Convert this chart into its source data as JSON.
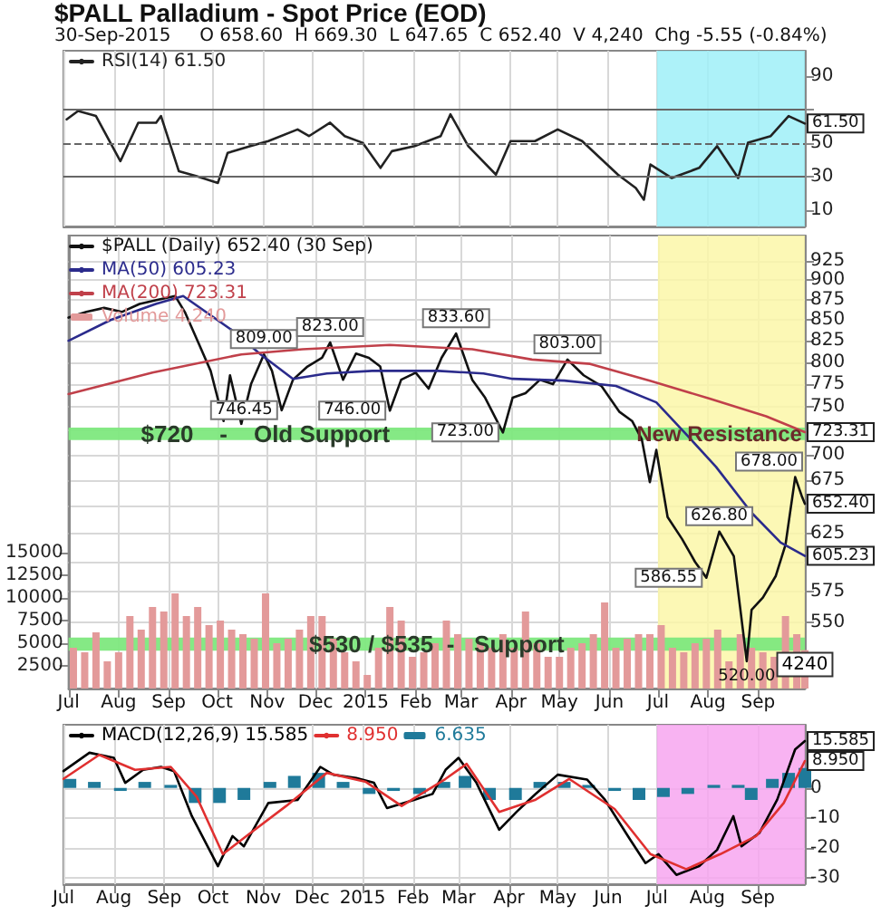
{
  "chart_data": [
    {
      "type": "line",
      "title": "$PALL Palladium - Spot Price (EOD)",
      "subtitle": "30-Sep-2015     O 658.60  H 669.30  L 647.65  C 652.40  V 4,240  Chg -5.55 (-0.84%)",
      "xlim": [
        "2014-07-01",
        "2015-09-30"
      ],
      "xticks": [
        "2014-07-01",
        "2014-08-01",
        "2014-09-01",
        "2014-10-01",
        "2014-11-01",
        "2014-12-01",
        "2015-01-01",
        "2015-02-01",
        "2015-03-01",
        "2015-04-01",
        "2015-05-01",
        "2015-06-01",
        "2015-07-01",
        "2015-08-01",
        "2015-09-01"
      ],
      "ylim": [
        0,
        105
      ],
      "yticks": [
        10,
        30,
        50,
        {
          "value": 70,
          "label": null
        },
        90
      ],
      "tick_labels": "y",
      "grid": "x",
      "legend": "top left",
      "marker": "none",
      "line_style": "solid",
      "x": [
        "2014-07-03",
        "2014-07-10",
        "2014-07-21",
        "2014-08-05",
        "2014-08-16",
        "2014-08-27",
        "2014-08-30",
        "2014-09-10",
        "2014-09-21",
        "2014-10-04",
        "2014-10-10",
        "2014-10-24",
        "2014-11-04",
        "2014-11-22",
        "2014-11-29",
        "2014-12-12",
        "2014-12-21",
        "2015-01-01",
        "2015-01-12",
        "2015-01-19",
        "2015-02-02",
        "2015-02-18",
        "2015-02-24",
        "2015-03-07",
        "2015-03-24",
        "2015-04-02",
        "2015-04-17",
        "2015-05-01",
        "2015-05-16",
        "2015-05-27",
        "2015-06-07",
        "2015-06-18",
        "2015-06-23",
        "2015-06-27",
        "2015-07-10",
        "2015-07-27",
        "2015-08-07",
        "2015-08-20",
        "2015-08-26",
        "2015-09-09",
        "2015-09-20",
        "2015-09-30"
      ],
      "series": [
        {
          "name": "RSI(14) 61.50",
          "color": "#222222",
          "values": [
            64,
            69,
            66,
            39,
            62,
            62,
            66,
            33,
            30,
            26,
            44,
            48,
            51,
            58,
            54,
            62,
            54,
            50,
            35,
            45,
            48,
            54,
            67,
            48,
            31,
            51,
            51,
            58,
            51,
            41,
            31,
            23,
            16,
            37,
            29,
            35,
            48,
            29,
            50,
            54,
            66,
            61.5
          ]
        }
      ],
      "ref_lines": [
        {
          "axis": "y",
          "value": 70,
          "color": "#666666",
          "line_style": "solid"
        },
        {
          "axis": "y",
          "value": 50,
          "color": "#666666",
          "line_style": "dashed"
        },
        {
          "axis": "y",
          "value": 30,
          "color": "#666666",
          "line_style": "solid"
        }
      ],
      "bands": [
        {
          "axis": "x",
          "from": "2015-07-01",
          "to": "2015-09-30",
          "color": "#9ff0f8"
        }
      ],
      "annotations": [
        {
          "text": "61.50",
          "x": "2015-09-30",
          "y": 61.5
        }
      ]
    },
    {
      "type": "line",
      "log": true,
      "xlim": [
        "2014-07-01",
        "2015-09-30"
      ],
      "xticks": [
        {
          "value": "2014-07-01",
          "label": "Jul"
        },
        {
          "value": "2014-08-01",
          "label": "Aug"
        },
        {
          "value": "2014-09-01",
          "label": "Sep"
        },
        {
          "value": "2014-10-01",
          "label": "Oct"
        },
        {
          "value": "2014-11-01",
          "label": "Nov"
        },
        {
          "value": "2014-12-01",
          "label": "Dec"
        },
        {
          "value": "2015-01-01",
          "label": "2015"
        },
        {
          "value": "2015-02-01",
          "label": "Feb"
        },
        {
          "value": "2015-03-01",
          "label": "Mar"
        },
        {
          "value": "2015-04-01",
          "label": "Apr"
        },
        {
          "value": "2015-05-01",
          "label": "May"
        },
        {
          "value": "2015-06-01",
          "label": "Jun"
        },
        {
          "value": "2015-07-01",
          "label": "Jul"
        },
        {
          "value": "2015-08-01",
          "label": "Aug"
        },
        {
          "value": "2015-09-01",
          "label": "Sep"
        }
      ],
      "ylim": [
        500,
        960
      ],
      "yticks": [
        550,
        575,
        {
          "value": 600,
          "label": null
        },
        625,
        {
          "value": 650,
          "label": null
        },
        675,
        700,
        {
          "value": 725,
          "label": null
        },
        750,
        775,
        800,
        825,
        850,
        875,
        900,
        925
      ],
      "y2lim": [
        0,
        50000
      ],
      "y2ticks": [
        2500,
        5000,
        7500,
        10000,
        12500,
        15000
      ],
      "grid": true,
      "legend": "top left",
      "marker": "none",
      "line_style": "solid",
      "series": [
        {
          "name": "$PALL (Daily) 652.40 (30 Sep)",
          "color": "#111111",
          "x": [
            "2014-07-01",
            "2014-07-12",
            "2014-07-23",
            "2014-08-03",
            "2014-08-14",
            "2014-08-25",
            "2014-09-05",
            "2014-09-11",
            "2014-09-20",
            "2014-09-27",
            "2014-10-05",
            "2014-10-09",
            "2014-10-16",
            "2014-10-22",
            "2014-10-30",
            "2014-11-04",
            "2014-11-10",
            "2014-11-17",
            "2014-11-26",
            "2014-12-05",
            "2014-12-10",
            "2014-12-18",
            "2014-12-26",
            "2015-01-03",
            "2015-01-10",
            "2015-01-16",
            "2015-01-23",
            "2015-02-01",
            "2015-02-09",
            "2015-02-17",
            "2015-02-26",
            "2015-03-08",
            "2015-03-16",
            "2015-03-27",
            "2015-04-02",
            "2015-04-10",
            "2015-04-19",
            "2015-04-27",
            "2015-05-06",
            "2015-05-16",
            "2015-05-27",
            "2015-06-07",
            "2015-06-15",
            "2015-06-21",
            "2015-06-26",
            "2015-06-30",
            "2015-07-07",
            "2015-07-16",
            "2015-07-24",
            "2015-07-31",
            "2015-08-08",
            "2015-08-17",
            "2015-08-25",
            "2015-08-28",
            "2015-09-04",
            "2015-09-12",
            "2015-09-18",
            "2015-09-24",
            "2015-09-28",
            "2015-09-30"
          ],
          "values": [
            853,
            860,
            865,
            860,
            870,
            875,
            880,
            860,
            820,
            790,
            735,
            785,
            732,
            775,
            809,
            790,
            746.45,
            780,
            795,
            805,
            823,
            780,
            810,
            805,
            795,
            746,
            780,
            788,
            770,
            805,
            833.6,
            780,
            760,
            723,
            760,
            765,
            780,
            775,
            803,
            785,
            773,
            745,
            735,
            716,
            673,
            705,
            640,
            620,
            600,
            586.55,
            626.8,
            605,
            520,
            560,
            570,
            588,
            615,
            678,
            660,
            652.4
          ]
        },
        {
          "name": "MA(50) 605.23",
          "color": "#2b2b8c",
          "x": [
            "2014-07-01",
            "2014-07-27",
            "2014-08-24",
            "2014-09-10",
            "2014-10-10",
            "2014-10-28",
            "2014-11-17",
            "2014-12-08",
            "2015-01-05",
            "2015-02-15",
            "2015-03-15",
            "2015-04-02",
            "2015-05-04",
            "2015-06-05",
            "2015-06-30",
            "2015-07-18",
            "2015-08-06",
            "2015-08-28",
            "2015-09-15",
            "2015-09-30"
          ],
          "values": [
            825,
            850,
            870,
            880,
            838,
            809,
            781,
            787,
            790,
            790,
            787,
            781,
            779,
            773,
            755,
            722,
            688,
            644,
            617,
            605.23
          ]
        },
        {
          "name": "MA(200) 723.31",
          "color": "#c0404a",
          "x": [
            "2014-07-01",
            "2014-08-22",
            "2014-10-16",
            "2014-11-23",
            "2015-01-16",
            "2015-03-08",
            "2015-04-14",
            "2015-05-20",
            "2015-06-26",
            "2015-08-02",
            "2015-09-06",
            "2015-09-30"
          ],
          "values": [
            764,
            788,
            809,
            815,
            820,
            815,
            803,
            798,
            779,
            759,
            740,
            723.31
          ]
        },
        {
          "name": "Volume 4,240",
          "type": "bar",
          "axis": "y2",
          "color": "#e39a9a",
          "x": [
            "2014-07-04",
            "2014-07-11",
            "2014-07-18",
            "2014-07-25",
            "2014-08-01",
            "2014-08-08",
            "2014-08-15",
            "2014-08-22",
            "2014-08-29",
            "2014-09-05",
            "2014-09-12",
            "2014-09-19",
            "2014-09-26",
            "2014-10-03",
            "2014-10-10",
            "2014-10-17",
            "2014-10-24",
            "2014-10-31",
            "2014-11-07",
            "2014-11-14",
            "2014-11-21",
            "2014-11-28",
            "2014-12-05",
            "2014-12-12",
            "2014-12-19",
            "2014-12-26",
            "2015-01-02",
            "2015-01-09",
            "2015-01-16",
            "2015-01-23",
            "2015-01-30",
            "2015-02-06",
            "2015-02-13",
            "2015-02-20",
            "2015-02-27",
            "2015-03-06",
            "2015-03-13",
            "2015-03-20",
            "2015-03-27",
            "2015-04-03",
            "2015-04-10",
            "2015-04-17",
            "2015-04-24",
            "2015-05-01",
            "2015-05-08",
            "2015-05-15",
            "2015-05-22",
            "2015-05-29",
            "2015-06-05",
            "2015-06-12",
            "2015-06-19",
            "2015-06-26",
            "2015-07-03",
            "2015-07-10",
            "2015-07-17",
            "2015-07-24",
            "2015-07-31",
            "2015-08-07",
            "2015-08-14",
            "2015-08-21",
            "2015-08-28",
            "2015-09-04",
            "2015-09-11",
            "2015-09-18",
            "2015-09-25",
            "2015-09-30"
          ],
          "values": [
            4500,
            4000,
            6200,
            3000,
            4000,
            8000,
            6500,
            9000,
            8500,
            10500,
            8000,
            9000,
            7000,
            7500,
            6500,
            6000,
            5500,
            10500,
            5000,
            5500,
            6500,
            8000,
            8000,
            5500,
            4000,
            3000,
            1500,
            4500,
            9000,
            7500,
            3500,
            4000,
            5000,
            7500,
            6000,
            5500,
            5000,
            4500,
            6000,
            4500,
            8500,
            5000,
            3500,
            3500,
            4500,
            5000,
            6000,
            9500,
            4500,
            5500,
            6000,
            6000,
            7000,
            4500,
            4000,
            5000,
            5500,
            6500,
            3000,
            6000,
            4500,
            4000,
            3500,
            8000,
            6000,
            4240
          ],
          "value_labels": [
            null,
            null,
            null,
            null,
            null,
            null,
            null,
            null,
            null,
            null,
            null,
            null,
            null,
            null,
            null,
            null,
            null,
            null,
            null,
            null,
            null,
            null,
            null,
            null,
            null,
            null,
            null,
            null,
            null,
            null,
            null,
            null,
            null,
            null,
            null,
            null,
            null,
            null,
            null,
            null,
            null,
            null,
            null,
            null,
            null,
            null,
            null,
            null,
            null,
            null,
            null,
            null,
            null,
            null,
            null,
            null,
            null,
            null,
            null,
            null,
            null,
            null,
            null,
            null,
            null,
            "4240"
          ]
        }
      ],
      "bands": [
        {
          "axis": "x",
          "from": "2015-07-01",
          "to": "2015-09-30",
          "color": "#fbf7a8"
        },
        {
          "axis": "y",
          "from": 715,
          "to": 728,
          "label": "$720    -    Old Support",
          "color": "#7ee87e"
        },
        {
          "axis": "y",
          "from": 528,
          "to": 538,
          "label": "$530 / $535  -   Support",
          "color": "#7ee87e"
        }
      ],
      "annotations": [
        {
          "text": "809.00",
          "x": "2014-10-30",
          "y": 809
        },
        {
          "text": "746.45",
          "x": "2014-11-10",
          "y": 746.45
        },
        {
          "text": "823.00",
          "x": "2014-12-10",
          "y": 823
        },
        {
          "text": "746.00",
          "x": "2015-01-16",
          "y": 746
        },
        {
          "text": "833.60",
          "x": "2015-02-26",
          "y": 833.6
        },
        {
          "text": "723.00",
          "x": "2015-03-27",
          "y": 723
        },
        {
          "text": "803.00",
          "x": "2015-05-06",
          "y": 803
        },
        {
          "text": "586.55",
          "x": "2015-07-31",
          "y": 586.55
        },
        {
          "text": "626.80",
          "x": "2015-08-08",
          "y": 626.8
        },
        {
          "text": "520.00",
          "x": "2015-08-25",
          "y": 520
        },
        {
          "text": "678.00",
          "x": "2015-09-24",
          "y": 678
        },
        {
          "text": "New Resistance",
          "x": "2015-08-08",
          "y": 721
        },
        {
          "text": "723.31",
          "x": "2015-09-30",
          "y": 723.31
        },
        {
          "text": "652.40",
          "x": "2015-09-30",
          "y": 652.4
        },
        {
          "text": "605.23",
          "x": "2015-09-30",
          "y": 605.23
        }
      ]
    },
    {
      "type": "line",
      "xlim": [
        "2014-07-01",
        "2015-09-30"
      ],
      "xticks": [
        {
          "value": "2014-07-01",
          "label": "Jul"
        },
        {
          "value": "2014-08-01",
          "label": "Aug"
        },
        {
          "value": "2014-09-01",
          "label": "Sep"
        },
        {
          "value": "2014-10-01",
          "label": "Oct"
        },
        {
          "value": "2014-11-01",
          "label": "Nov"
        },
        {
          "value": "2014-12-01",
          "label": "Dec"
        },
        {
          "value": "2015-01-01",
          "label": "2015"
        },
        {
          "value": "2015-02-01",
          "label": "Feb"
        },
        {
          "value": "2015-03-01",
          "label": "Mar"
        },
        {
          "value": "2015-04-01",
          "label": "Apr"
        },
        {
          "value": "2015-05-01",
          "label": "May"
        },
        {
          "value": "2015-06-01",
          "label": "Jun"
        },
        {
          "value": "2015-07-01",
          "label": "Jul"
        },
        {
          "value": "2015-08-01",
          "label": "Aug"
        },
        {
          "value": "2015-09-01",
          "label": "Sep"
        }
      ],
      "ylim": [
        -32,
        21
      ],
      "yticks": [
        -30,
        -20,
        -10,
        0
      ],
      "grid": true,
      "legend": "top left",
      "marker": "none",
      "line_style": "solid",
      "series": [
        {
          "name": "MACD(12,26,9) 15.585",
          "color": "#000000",
          "x": [
            "2014-07-01",
            "2014-07-17",
            "2014-08-01",
            "2014-08-08",
            "2014-08-19",
            "2014-08-30",
            "2014-09-07",
            "2014-09-18",
            "2014-10-04",
            "2014-10-13",
            "2014-10-20",
            "2014-11-04",
            "2014-11-22",
            "2014-12-06",
            "2014-12-14",
            "2014-12-28",
            "2015-01-08",
            "2015-01-16",
            "2015-02-02",
            "2015-02-13",
            "2015-02-21",
            "2015-03-01",
            "2015-03-12",
            "2015-03-26",
            "2015-04-06",
            "2015-04-17",
            "2015-05-01",
            "2015-05-19",
            "2015-05-30",
            "2015-06-14",
            "2015-06-24",
            "2015-07-02",
            "2015-07-13",
            "2015-07-27",
            "2015-08-07",
            "2015-08-17",
            "2015-08-22",
            "2015-09-02",
            "2015-09-13",
            "2015-09-24",
            "2015-09-30"
          ],
          "values": [
            5.6,
            11.7,
            10,
            1.7,
            6,
            7,
            5.6,
            -9.4,
            -26,
            -16,
            -19.4,
            -5,
            -4,
            7,
            4.4,
            3.3,
            1.7,
            -6.7,
            -3.9,
            -2,
            6,
            10,
            1.7,
            -13.9,
            -7.8,
            -2.2,
            4.4,
            2.8,
            -3.9,
            -16.7,
            -25,
            -22,
            -28.9,
            -26,
            -20.6,
            -9.4,
            -19.4,
            -15,
            -3.9,
            12.8,
            15.585
          ]
        },
        {
          "name": "8.950",
          "color": "#e03030",
          "x": [
            "2014-07-01",
            "2014-07-23",
            "2014-08-14",
            "2014-09-05",
            "2014-09-21",
            "2014-10-07",
            "2014-10-24",
            "2014-11-15",
            "2014-12-10",
            "2015-01-03",
            "2015-01-25",
            "2015-02-21",
            "2015-03-06",
            "2015-03-26",
            "2015-04-17",
            "2015-05-08",
            "2015-06-05",
            "2015-06-27",
            "2015-07-19",
            "2015-08-09",
            "2015-08-31",
            "2015-09-17",
            "2015-09-30"
          ],
          "values": [
            3,
            11,
            6,
            7,
            -3,
            -22,
            -15,
            -6,
            5,
            2,
            -6,
            3,
            8,
            -8,
            -4,
            3,
            -7,
            -22,
            -27,
            -22,
            -16,
            -5,
            8.95
          ]
        },
        {
          "name": "6.635",
          "type": "bar",
          "color": "#1f7a9a",
          "x": [
            "2014-07-05",
            "2014-07-20",
            "2014-08-05",
            "2014-08-20",
            "2014-09-05",
            "2014-09-20",
            "2014-10-05",
            "2014-10-20",
            "2014-11-05",
            "2014-11-20",
            "2014-12-05",
            "2014-12-20",
            "2015-01-05",
            "2015-01-20",
            "2015-02-05",
            "2015-02-20",
            "2015-03-05",
            "2015-03-20",
            "2015-04-05",
            "2015-04-20",
            "2015-05-05",
            "2015-05-20",
            "2015-06-05",
            "2015-06-20",
            "2015-07-05",
            "2015-07-20",
            "2015-08-05",
            "2015-08-20",
            "2015-08-28",
            "2015-09-10",
            "2015-09-20",
            "2015-09-30"
          ],
          "values": [
            3,
            2,
            -1,
            2,
            1,
            -5,
            -5,
            -4,
            2,
            4,
            5,
            2,
            -2,
            -1,
            -2,
            2,
            4,
            -4,
            -4,
            2,
            2,
            1,
            -1,
            -4,
            -3,
            -2,
            1,
            1,
            -4,
            3,
            5,
            6.635
          ]
        }
      ],
      "bands": [
        {
          "axis": "x",
          "from": "2015-07-01",
          "to": "2015-09-30",
          "color": "#f7a6f0"
        }
      ],
      "annotations": [
        {
          "text": "15.585",
          "x": "2015-09-30",
          "y": 15.585
        },
        {
          "text": "8.950",
          "x": "2015-09-30",
          "y": 8.95
        }
      ]
    }
  ]
}
